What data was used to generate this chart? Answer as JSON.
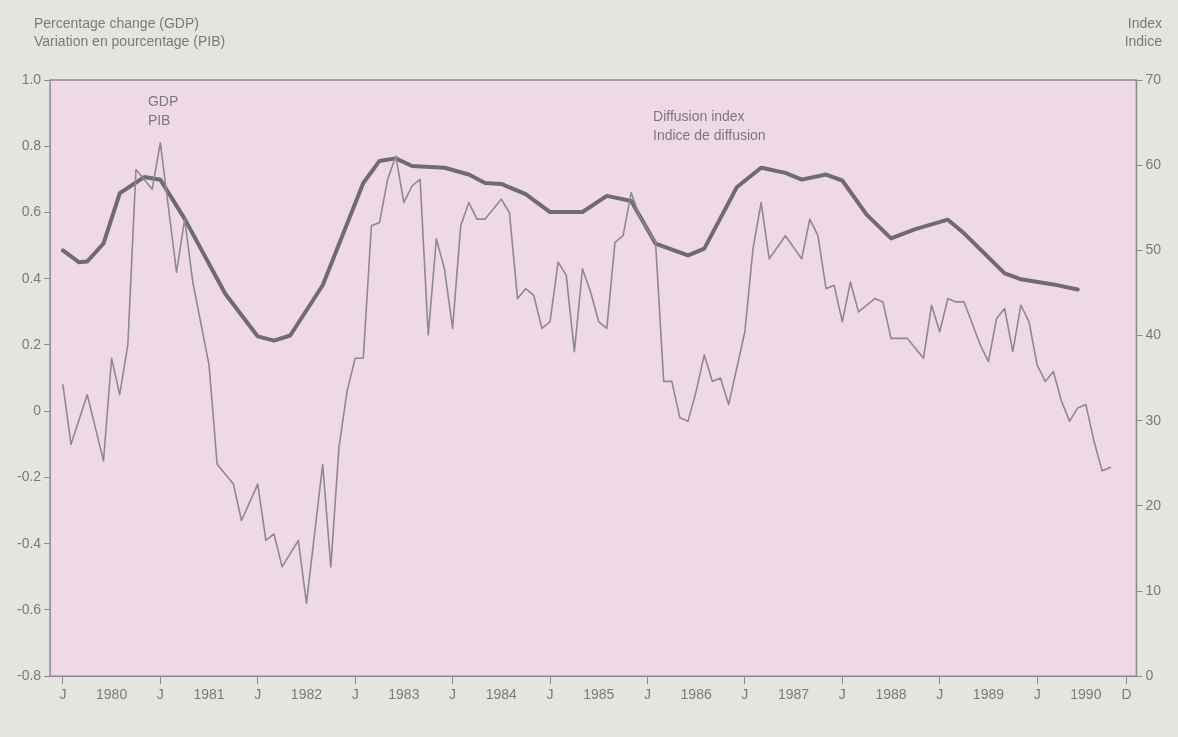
{
  "chart_data": {
    "type": "line",
    "ylabel": "Percentage change (GDP)\nVariation en pourcentage (PIB)",
    "y2label": "Index\nIndice",
    "xlim": [
      "1979-11-14",
      "1991-01-08"
    ],
    "xticks": [
      {
        "value": "1980-01",
        "label": "J"
      },
      {
        "value": "1980-07",
        "label": "1980"
      },
      {
        "value": "1981-01",
        "label": "J"
      },
      {
        "value": "1981-07",
        "label": "1981"
      },
      {
        "value": "1982-01",
        "label": "J"
      },
      {
        "value": "1982-07",
        "label": "1982"
      },
      {
        "value": "1983-01",
        "label": "J"
      },
      {
        "value": "1983-07",
        "label": "1983"
      },
      {
        "value": "1984-01",
        "label": "J"
      },
      {
        "value": "1984-07",
        "label": "1984"
      },
      {
        "value": "1985-01",
        "label": "J"
      },
      {
        "value": "1985-07",
        "label": "1985"
      },
      {
        "value": "1986-01",
        "label": "J"
      },
      {
        "value": "1986-07",
        "label": "1986"
      },
      {
        "value": "1987-01",
        "label": "J"
      },
      {
        "value": "1987-07",
        "label": "1987"
      },
      {
        "value": "1988-01",
        "label": "J"
      },
      {
        "value": "1988-07",
        "label": "1988"
      },
      {
        "value": "1989-01",
        "label": "J"
      },
      {
        "value": "1989-07",
        "label": "1989"
      },
      {
        "value": "1990-01",
        "label": "J"
      },
      {
        "value": "1990-07",
        "label": "1990"
      },
      {
        "value": "1990-12",
        "label": "D"
      }
    ],
    "ylim": [
      -0.8,
      1.0
    ],
    "yticks": [
      -0.8,
      -0.6,
      -0.4,
      -0.2,
      0,
      0.2,
      0.4,
      0.6,
      0.8,
      {
        "value": 1.0,
        "label": "1.0"
      }
    ],
    "y2lim": [
      0,
      70
    ],
    "y2ticks": [
      0,
      10,
      20,
      30,
      40,
      50,
      60,
      70
    ],
    "grid": false,
    "legend": false,
    "marker": "none",
    "line_style": "solid",
    "series": [
      {
        "name": "GDP\nPIB",
        "color": "#8c8a8e",
        "axis": "y",
        "x": [
          "1980-01",
          "1980-02",
          "1980-04",
          "1980-06",
          "1980-07",
          "1980-08",
          "1980-09",
          "1980-10",
          "1980-12",
          "1981-01",
          "1981-03",
          "1981-04",
          "1981-05",
          "1981-07",
          "1981-08",
          "1981-10",
          "1981-11",
          "1982-01",
          "1982-02",
          "1982-03",
          "1982-04",
          "1982-06",
          "1982-07",
          "1982-09",
          "1982-10",
          "1982-11",
          "1982-12",
          "1983-01",
          "1983-02",
          "1983-03",
          "1983-04",
          "1983-05",
          "1983-06",
          "1983-07",
          "1983-08",
          "1983-09",
          "1983-10",
          "1983-11",
          "1983-12",
          "1984-01",
          "1984-02",
          "1984-03",
          "1984-04",
          "1984-05",
          "1984-07",
          "1984-08",
          "1984-09",
          "1984-10",
          "1984-11",
          "1984-12",
          "1985-01",
          "1985-02",
          "1985-03",
          "1985-04",
          "1985-05",
          "1985-06",
          "1985-07",
          "1985-08",
          "1985-09",
          "1985-10",
          "1985-11",
          "1985-12",
          "1986-02",
          "1986-03",
          "1986-04",
          "1986-05",
          "1986-06",
          "1986-07",
          "1986-08",
          "1986-09",
          "1986-10",
          "1986-11",
          "1987-01",
          "1987-02",
          "1987-03",
          "1987-04",
          "1987-06",
          "1987-08",
          "1987-09",
          "1987-10",
          "1987-11",
          "1987-12",
          "1988-01",
          "1988-02",
          "1988-03",
          "1988-05",
          "1988-06",
          "1988-07",
          "1988-09",
          "1988-11",
          "1988-12",
          "1989-01",
          "1989-02",
          "1989-03",
          "1989-04",
          "1989-06",
          "1989-07",
          "1989-08",
          "1989-09",
          "1989-10",
          "1989-11",
          "1989-12",
          "1990-01",
          "1990-02",
          "1990-03",
          "1990-04",
          "1990-05",
          "1990-06",
          "1990-07",
          "1990-08",
          "1990-09",
          "1990-10"
        ],
        "values": [
          0.08,
          -0.1,
          0.05,
          -0.15,
          0.16,
          0.05,
          0.2,
          0.73,
          0.67,
          0.81,
          0.42,
          0.58,
          0.39,
          0.14,
          -0.16,
          -0.22,
          -0.33,
          -0.22,
          -0.39,
          -0.37,
          -0.47,
          -0.39,
          -0.58,
          -0.16,
          -0.47,
          -0.11,
          0.06,
          0.16,
          0.16,
          0.56,
          0.57,
          0.7,
          0.77,
          0.63,
          0.68,
          0.7,
          0.23,
          0.52,
          0.43,
          0.25,
          0.56,
          0.63,
          0.58,
          0.58,
          0.64,
          0.6,
          0.34,
          0.37,
          0.35,
          0.25,
          0.27,
          0.45,
          0.41,
          0.18,
          0.43,
          0.36,
          0.27,
          0.25,
          0.51,
          0.53,
          0.66,
          0.59,
          0.51,
          0.09,
          0.09,
          -0.02,
          -0.03,
          0.06,
          0.17,
          0.09,
          0.1,
          0.02,
          0.24,
          0.49,
          0.63,
          0.46,
          0.53,
          0.46,
          0.58,
          0.53,
          0.37,
          0.38,
          0.27,
          0.39,
          0.3,
          0.34,
          0.33,
          0.22,
          0.22,
          0.16,
          0.32,
          0.24,
          0.34,
          0.33,
          0.33,
          0.2,
          0.15,
          0.28,
          0.31,
          0.18,
          0.32,
          0.27,
          0.14,
          0.09,
          0.12,
          0.03,
          -0.03,
          0.01,
          0.02,
          -0.09,
          -0.18,
          -0.17
        ]
      },
      {
        "name": "Diffusion index\nIndice de diffusion",
        "color": "#6f6c70",
        "axis": "y2",
        "x": [
          "1980-01",
          "1980-03",
          "1980-04",
          "1980-06",
          "1980-08",
          "1980-11",
          "1981-01",
          "1981-04",
          "1981-09",
          "1982-01",
          "1982-03",
          "1982-05",
          "1982-09",
          "1983-02",
          "1983-04",
          "1983-06",
          "1983-08",
          "1983-12",
          "1984-03",
          "1984-05",
          "1984-07",
          "1984-10",
          "1985-01",
          "1985-05",
          "1985-08",
          "1985-11",
          "1986-02",
          "1986-06",
          "1986-08",
          "1986-12",
          "1987-03",
          "1987-06",
          "1987-08",
          "1987-11",
          "1988-01",
          "1988-04",
          "1988-07",
          "1988-10",
          "1989-02",
          "1989-04",
          "1989-09",
          "1989-11",
          "1990-03",
          "1990-06"
        ],
        "values": [
          50.0,
          48.6,
          48.7,
          50.8,
          56.7,
          58.6,
          58.3,
          53.7,
          44.9,
          39.9,
          39.4,
          40.0,
          45.9,
          57.9,
          60.5,
          60.8,
          59.9,
          59.7,
          58.9,
          57.9,
          57.8,
          56.6,
          54.5,
          54.5,
          56.4,
          55.8,
          50.8,
          49.4,
          50.2,
          57.4,
          59.7,
          59.1,
          58.3,
          58.9,
          58.2,
          54.2,
          51.4,
          52.5,
          53.6,
          52.0,
          47.3,
          46.6,
          46.0,
          45.4
        ]
      }
    ]
  }
}
